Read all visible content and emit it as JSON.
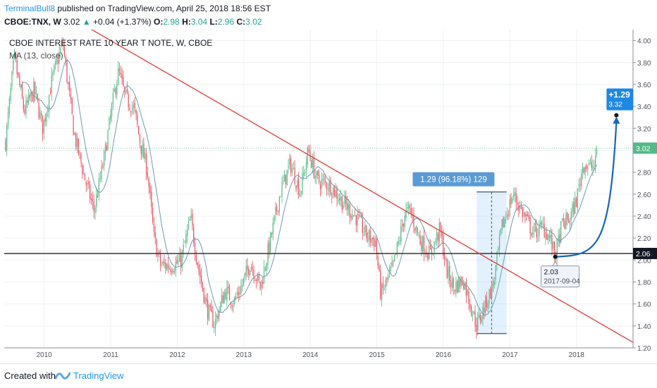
{
  "header": {
    "author": "TerminalBull8",
    "published_text": "published on TradingView.com, April 25, 2018 18:56 EST"
  },
  "quote": {
    "symbol": "CBOE:TNX, W",
    "last": "3.02",
    "change": "+0.04 (+1.37%)",
    "o_label": "O:",
    "o": "2.98",
    "h_label": "H:",
    "h": "3.04",
    "l_label": "L:",
    "l": "2.96",
    "c_label": "C:",
    "c": "3.02"
  },
  "footer": {
    "created_with": "Created with",
    "brand": "TradingView"
  },
  "chart_data": {
    "type": "candlestick",
    "title": "CBOE INTEREST RATE 10 YEAR T NOTE, W, CBOE",
    "indicator": "MA (13, close)",
    "x_ticks": [
      "2010",
      "2011",
      "2012",
      "2013",
      "2014",
      "2015",
      "2016",
      "2017",
      "2018"
    ],
    "y_ticks": [
      "4.00",
      "3.80",
      "3.60",
      "3.40",
      "3.20",
      "3.00",
      "2.80",
      "2.60",
      "2.40",
      "2.20",
      "2.00",
      "1.80",
      "1.60",
      "1.40",
      "1.20"
    ],
    "ylim": [
      1.2,
      4.1
    ],
    "xlim": [
      2009.4,
      2018.85
    ],
    "colors": {
      "up": "#53b987",
      "down": "#eb4d5c",
      "ma": "#6e9cad",
      "trend": "#e53935",
      "support": "#333333",
      "measure": "#2196f3"
    },
    "price_path": [
      [
        2009.42,
        3.08
      ],
      [
        2009.55,
        3.85
      ],
      [
        2009.7,
        3.35
      ],
      [
        2009.85,
        3.55
      ],
      [
        2009.98,
        3.2
      ],
      [
        2010.12,
        3.65
      ],
      [
        2010.28,
        3.98
      ],
      [
        2010.45,
        3.15
      ],
      [
        2010.62,
        2.72
      ],
      [
        2010.75,
        2.45
      ],
      [
        2010.9,
        2.92
      ],
      [
        2011.06,
        3.55
      ],
      [
        2011.12,
        3.72
      ],
      [
        2011.22,
        3.48
      ],
      [
        2011.35,
        3.38
      ],
      [
        2011.45,
        3.05
      ],
      [
        2011.55,
        2.82
      ],
      [
        2011.65,
        2.2
      ],
      [
        2011.75,
        1.95
      ],
      [
        2011.9,
        1.95
      ],
      [
        2012.05,
        1.98
      ],
      [
        2012.2,
        2.38
      ],
      [
        2012.32,
        1.92
      ],
      [
        2012.45,
        1.55
      ],
      [
        2012.56,
        1.42
      ],
      [
        2012.72,
        1.72
      ],
      [
        2012.85,
        1.62
      ],
      [
        2012.98,
        1.78
      ],
      [
        2013.1,
        1.98
      ],
      [
        2013.25,
        1.75
      ],
      [
        2013.4,
        2.18
      ],
      [
        2013.55,
        2.62
      ],
      [
        2013.7,
        2.88
      ],
      [
        2013.85,
        2.62
      ],
      [
        2013.97,
        3.0
      ],
      [
        2014.1,
        2.72
      ],
      [
        2014.3,
        2.68
      ],
      [
        2014.5,
        2.52
      ],
      [
        2014.7,
        2.38
      ],
      [
        2014.85,
        2.22
      ],
      [
        2014.98,
        2.17
      ],
      [
        2015.06,
        1.68
      ],
      [
        2015.25,
        1.95
      ],
      [
        2015.42,
        2.42
      ],
      [
        2015.5,
        2.45
      ],
      [
        2015.65,
        2.18
      ],
      [
        2015.8,
        2.05
      ],
      [
        2015.95,
        2.28
      ],
      [
        2016.05,
        1.9
      ],
      [
        2016.15,
        1.75
      ],
      [
        2016.3,
        1.82
      ],
      [
        2016.5,
        1.4
      ],
      [
        2016.6,
        1.55
      ],
      [
        2016.75,
        1.78
      ],
      [
        2016.88,
        2.3
      ],
      [
        2016.98,
        2.48
      ],
      [
        2017.05,
        2.6
      ],
      [
        2017.2,
        2.42
      ],
      [
        2017.35,
        2.25
      ],
      [
        2017.5,
        2.3
      ],
      [
        2017.6,
        2.2
      ],
      [
        2017.68,
        2.03
      ],
      [
        2017.78,
        2.32
      ],
      [
        2017.9,
        2.38
      ],
      [
        2018.0,
        2.55
      ],
      [
        2018.1,
        2.88
      ],
      [
        2018.2,
        2.85
      ],
      [
        2018.28,
        2.86
      ],
      [
        2018.32,
        3.02
      ]
    ],
    "last_price": "3.02",
    "support_level": 2.06,
    "support_label": "2.06",
    "trendline": {
      "x1": 2010.2,
      "y1": 4.28,
      "x2": 2018.85,
      "y2": 1.25
    },
    "measure": {
      "x1": 2016.5,
      "x2": 2016.95,
      "y_low": 1.33,
      "y_high": 2.62,
      "label": "1.29 (96.18%) 129"
    },
    "low_callout": {
      "x": 2017.68,
      "y": 2.03,
      "price": "2.03",
      "date": "2017-09-04"
    },
    "projection": {
      "x": 2018.6,
      "y": 3.32,
      "change": "+1.29",
      "price": "3.32"
    }
  }
}
